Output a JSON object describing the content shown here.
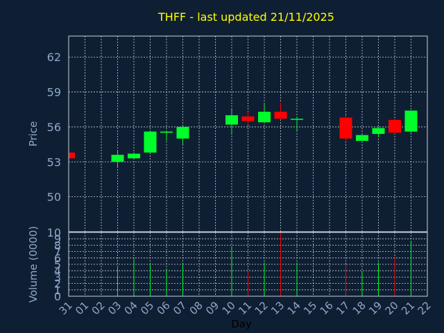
{
  "chart_data": {
    "type": "candlestick",
    "title": "THFF - last updated 21/11/2025",
    "ylabel": "Price",
    "volume_label": "Volume (0000)",
    "xlabel": "Day",
    "ylim": [
      47,
      63.8
    ],
    "yticks": [
      50,
      53,
      56,
      59,
      62
    ],
    "volume_ylim": [
      0,
      10
    ],
    "volume_yticks": [
      0,
      1,
      2,
      3,
      4,
      5,
      6,
      7,
      8,
      9,
      10
    ],
    "categories": [
      "31",
      "01",
      "02",
      "03",
      "04",
      "05",
      "06",
      "07",
      "08",
      "09",
      "10",
      "11",
      "12",
      "13",
      "14",
      "15",
      "16",
      "17",
      "18",
      "19",
      "20",
      "21",
      "22"
    ],
    "colors": {
      "up": "#00ff2a",
      "down": "#ff0000",
      "background": "#0f1f33",
      "title": "#ffff00",
      "axis_text": "#8fa9c9",
      "grid": "#c8d0da"
    },
    "candles": [
      {
        "day": "31",
        "open": 53.8,
        "high": 53.8,
        "low": 53.3,
        "close": 53.3,
        "volume": 0.4
      },
      {
        "day": "03",
        "open": 53.0,
        "high": 54.0,
        "low": 52.5,
        "close": 53.6,
        "volume": 4.5
      },
      {
        "day": "04",
        "open": 53.3,
        "high": 53.8,
        "low": 53.3,
        "close": 53.7,
        "volume": 5.8
      },
      {
        "day": "05",
        "open": 53.8,
        "high": 55.7,
        "low": 53.8,
        "close": 55.6,
        "volume": 5.0
      },
      {
        "day": "06",
        "open": 55.5,
        "high": 55.7,
        "low": 54.8,
        "close": 55.6,
        "volume": 4.2
      },
      {
        "day": "07",
        "open": 55.0,
        "high": 56.1,
        "low": 54.5,
        "close": 56.0,
        "volume": 5.0
      },
      {
        "day": "10",
        "open": 56.2,
        "high": 57.5,
        "low": 55.3,
        "close": 57.0,
        "volume": 7.8
      },
      {
        "day": "11",
        "open": 56.9,
        "high": 57.3,
        "low": 56.2,
        "close": 56.5,
        "volume": 4.0
      },
      {
        "day": "12",
        "open": 56.4,
        "high": 58.0,
        "low": 56.3,
        "close": 57.3,
        "volume": 5.3
      },
      {
        "day": "13",
        "open": 57.3,
        "high": 58.1,
        "low": 56.7,
        "close": 56.7,
        "volume": 10.0
      },
      {
        "day": "14",
        "open": 56.7,
        "high": 56.9,
        "low": 55.6,
        "close": 56.7,
        "volume": 5.3
      },
      {
        "day": "17",
        "open": 56.8,
        "high": 57.0,
        "low": 54.8,
        "close": 55.0,
        "volume": 5.0
      },
      {
        "day": "18",
        "open": 54.8,
        "high": 55.3,
        "low": 54.8,
        "close": 55.3,
        "volume": 3.9
      },
      {
        "day": "19",
        "open": 55.4,
        "high": 56.0,
        "low": 55.1,
        "close": 55.9,
        "volume": 5.3
      },
      {
        "day": "20",
        "open": 56.6,
        "high": 56.7,
        "low": 55.4,
        "close": 55.5,
        "volume": 6.0
      },
      {
        "day": "21",
        "open": 55.6,
        "high": 57.4,
        "low": 55.5,
        "close": 57.4,
        "volume": 8.5
      }
    ]
  }
}
